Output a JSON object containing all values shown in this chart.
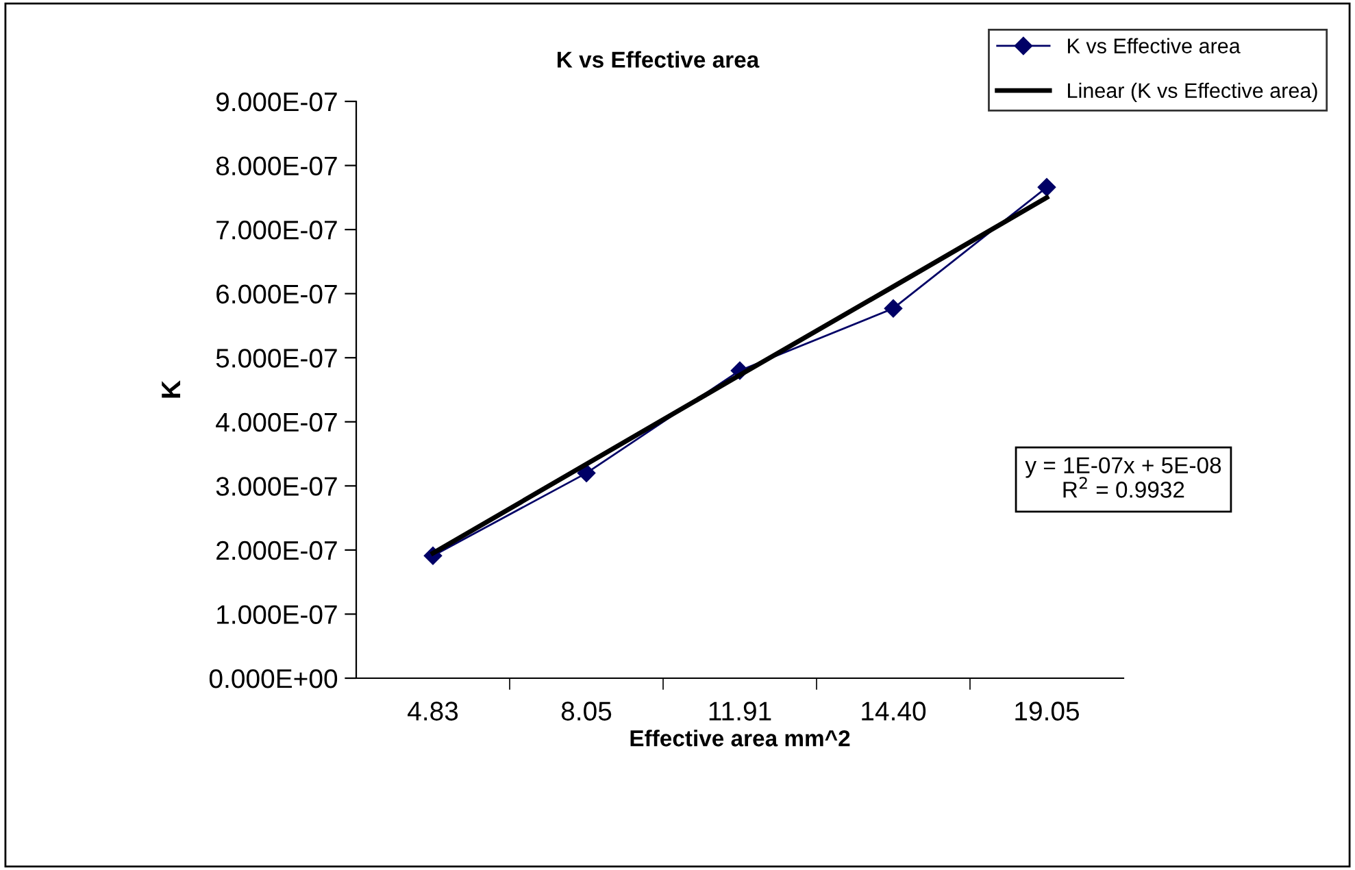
{
  "chart_data": {
    "type": "line",
    "title": "K vs Effective area",
    "xlabel": "Effective area mm^2",
    "ylabel": "K",
    "categories": [
      "4.83",
      "8.05",
      "11.91",
      "14.40",
      "19.05"
    ],
    "series": [
      {
        "name": "K vs Effective area",
        "color": "#000066",
        "values": [
          1.91e-07,
          3.2e-07,
          4.8e-07,
          5.77e-07,
          7.66e-07
        ],
        "marker": "diamond"
      },
      {
        "name": "Linear (K vs Effective area)",
        "color": "#000000",
        "values": [
          1.95e-07,
          3.34e-07,
          4.73e-07,
          6.11e-07,
          7.5e-07
        ],
        "marker": "none"
      }
    ],
    "ylim": [
      0,
      9e-07
    ],
    "yticks": [
      {
        "value": 0,
        "label": "0.000E+00"
      },
      {
        "value": 1e-07,
        "label": "1.000E-07"
      },
      {
        "value": 2e-07,
        "label": "2.000E-07"
      },
      {
        "value": 3e-07,
        "label": "3.000E-07"
      },
      {
        "value": 4e-07,
        "label": "4.000E-07"
      },
      {
        "value": 5e-07,
        "label": "5.000E-07"
      },
      {
        "value": 6e-07,
        "label": "6.000E-07"
      },
      {
        "value": 7e-07,
        "label": "7.000E-07"
      },
      {
        "value": 8e-07,
        "label": "8.000E-07"
      },
      {
        "value": 9e-07,
        "label": "9.000E-07"
      }
    ],
    "annotations": [
      "y = 1E-07x + 5E-08\nR$^{2}$ = 0.9932"
    ],
    "legend": "top right",
    "grid": false
  }
}
